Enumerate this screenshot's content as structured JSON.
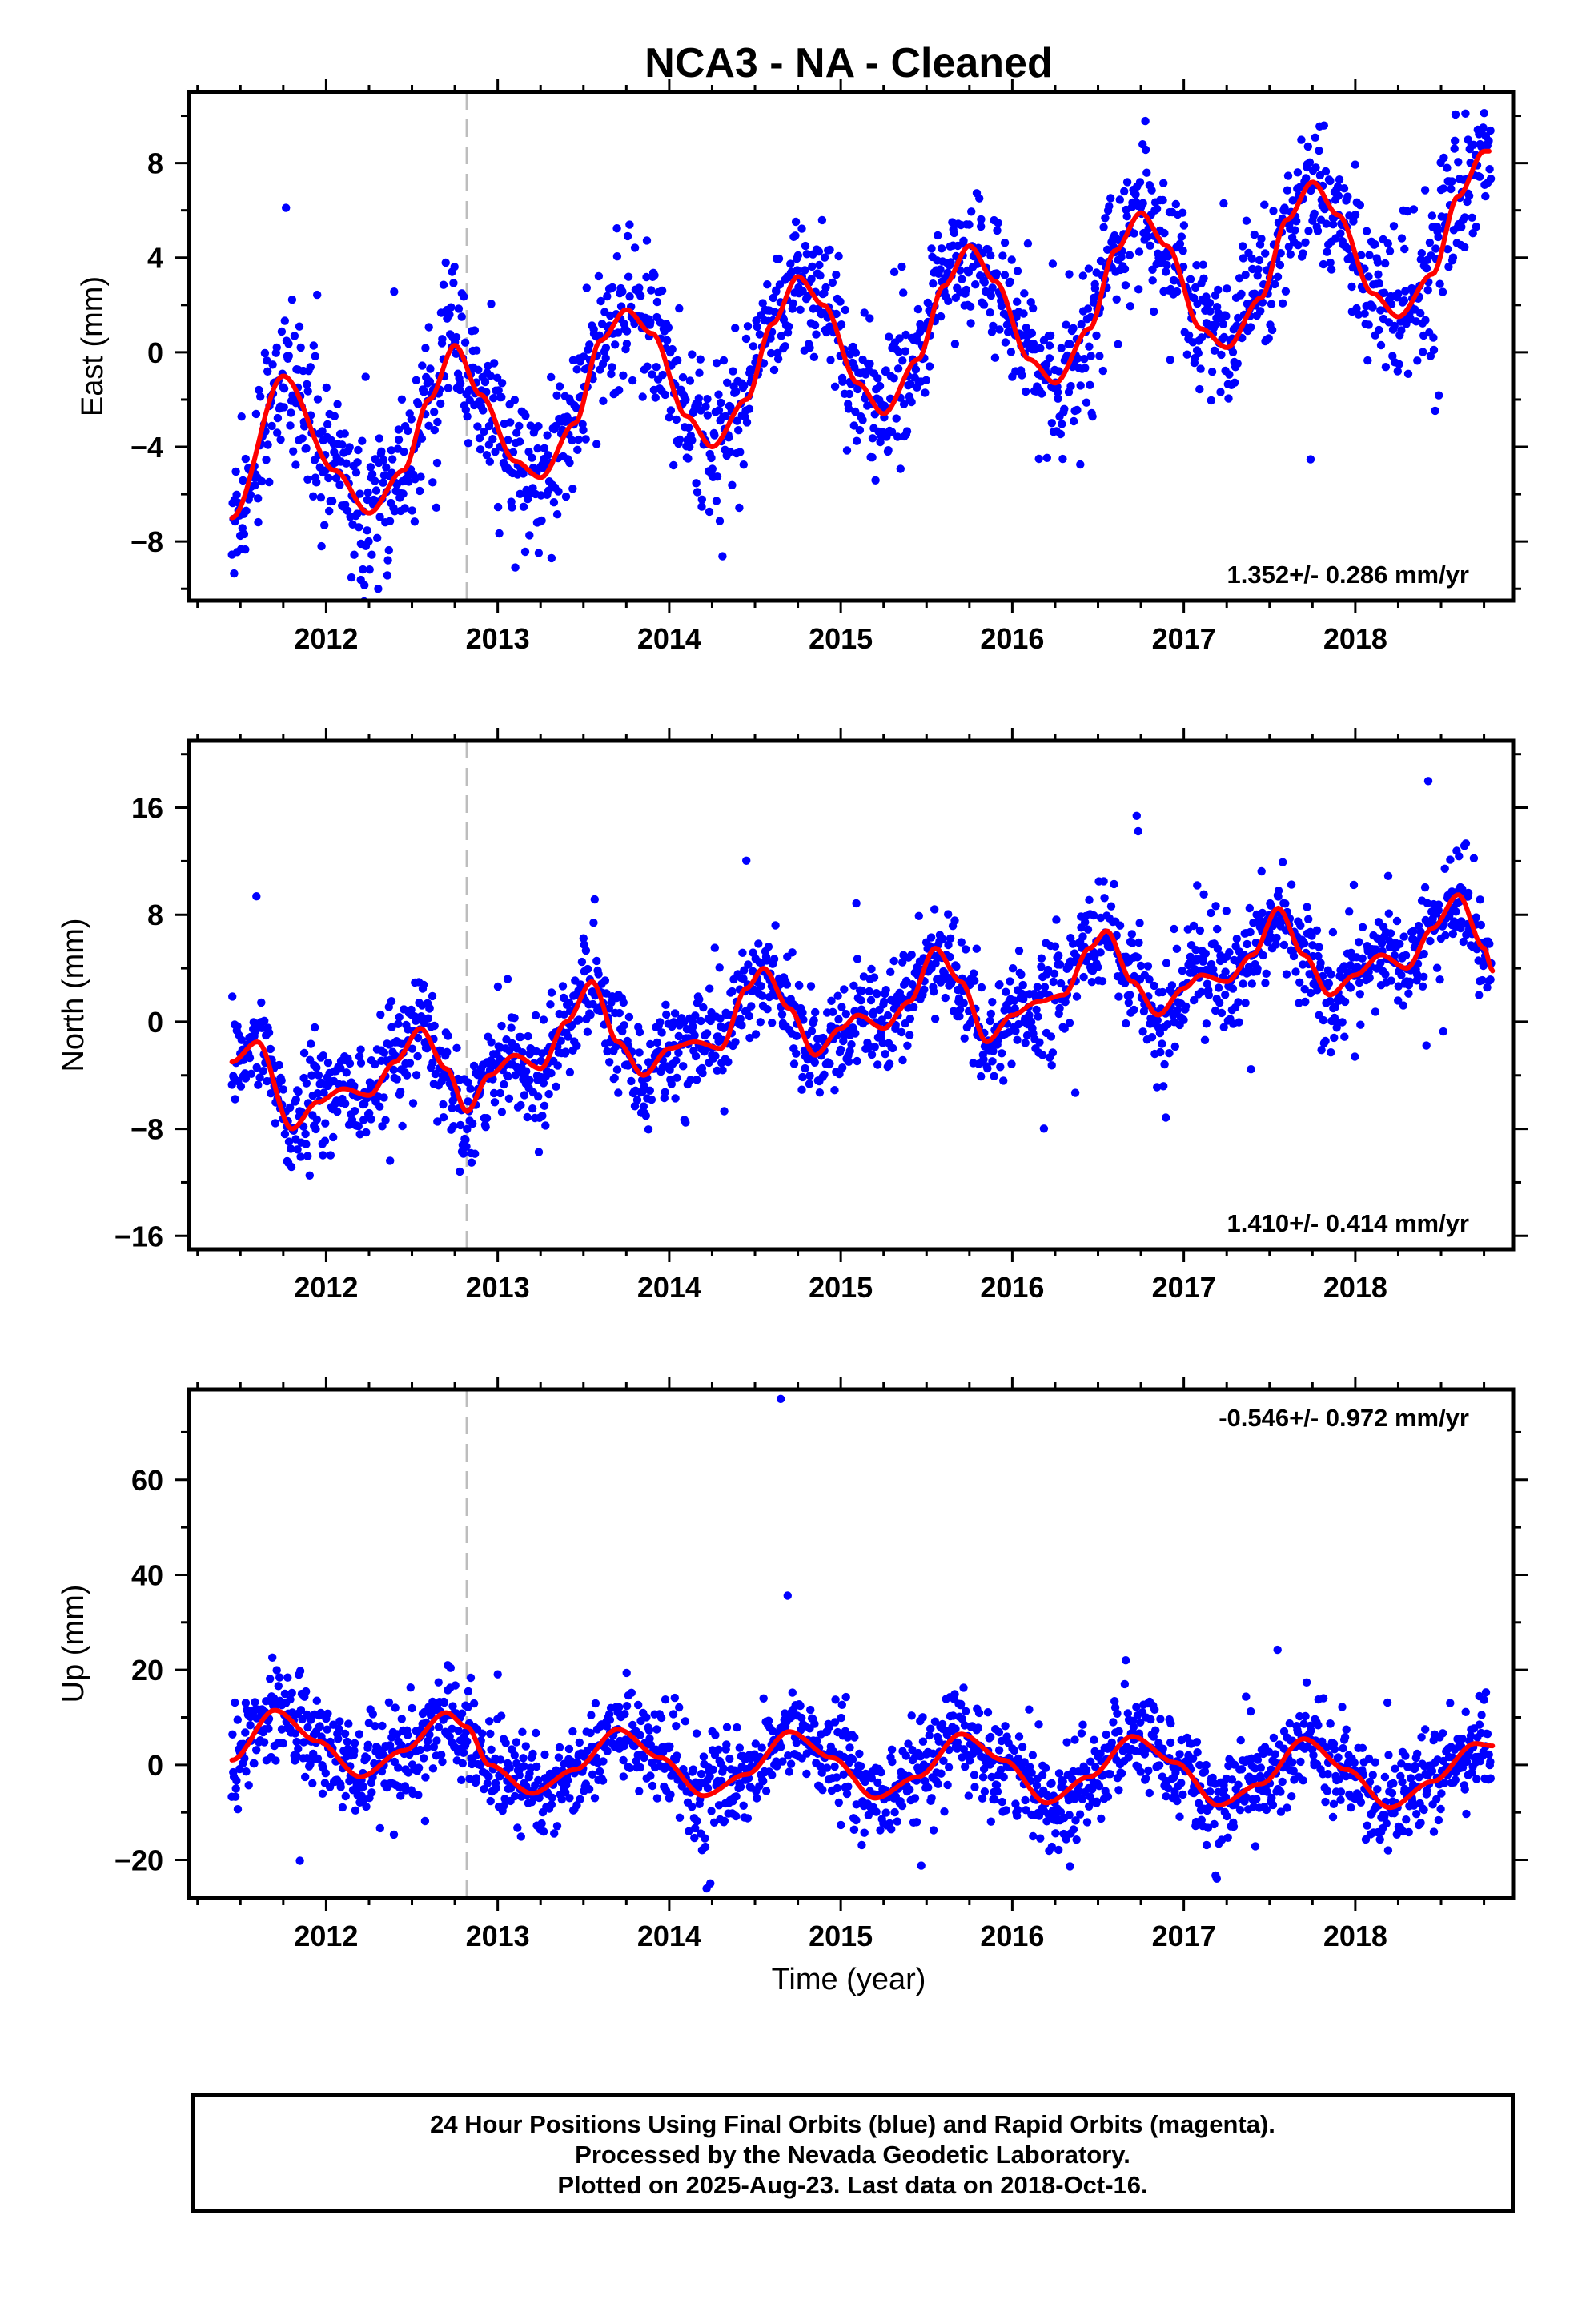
{
  "title": "NCA3  - NA - Cleaned",
  "xlabel": "Time (year)",
  "caption": [
    "24 Hour Positions Using Final Orbits (blue) and Rapid Orbits (magenta).",
    "Processed by the Nevada Geodetic Laboratory.",
    "Plotted on 2025-Aug-23. Last data on 2018-Oct-16."
  ],
  "colors": {
    "points": "#0000ff",
    "fit": "#ff0000",
    "marker": "#bdbdbd",
    "axis": "#000000"
  },
  "chart_data": [
    {
      "type": "scatter",
      "ylabel": "East (mm)",
      "xlim": [
        2011.2,
        2018.92
      ],
      "ylim": [
        -10.5,
        11.0
      ],
      "yticks": [
        -8,
        -4,
        0,
        4,
        8
      ],
      "xticks": [
        2012,
        2013,
        2014,
        2015,
        2016,
        2017,
        2018
      ],
      "event_line_x": 2012.82,
      "rate_label": "1.352+/- 0.286 mm/yr",
      "rate_position": "bottom-right",
      "fit": {
        "series": "red",
        "x": [
          2011.45,
          2011.75,
          2012.05,
          2012.25,
          2012.45,
          2012.6,
          2012.75,
          2012.9,
          2013.1,
          2013.25,
          2013.45,
          2013.6,
          2013.75,
          2013.9,
          2014.1,
          2014.25,
          2014.45,
          2014.6,
          2014.75,
          2014.9,
          2015.1,
          2015.25,
          2015.45,
          2015.6,
          2015.75,
          2015.9,
          2016.1,
          2016.25,
          2016.45,
          2016.6,
          2016.75,
          2016.9,
          2017.1,
          2017.25,
          2017.45,
          2017.6,
          2017.75,
          2017.9,
          2018.1,
          2018.25,
          2018.45,
          2018.6,
          2018.75,
          2018.78
        ],
        "y": [
          -7.0,
          -1.0,
          -5.0,
          -6.8,
          -5.0,
          -2.0,
          0.3,
          -1.8,
          -4.6,
          -5.3,
          -3.0,
          0.5,
          1.8,
          0.8,
          -2.7,
          -4.0,
          -2.0,
          1.2,
          3.2,
          2.0,
          -1.3,
          -2.6,
          -0.3,
          2.8,
          4.5,
          3.0,
          -0.3,
          -1.3,
          1.0,
          4.3,
          5.9,
          4.5,
          1.0,
          0.2,
          2.3,
          5.6,
          7.2,
          5.8,
          2.5,
          1.5,
          3.3,
          6.6,
          8.5,
          8.5
        ]
      },
      "points": {
        "count": 1800,
        "scatter_sd": 1.5,
        "range_x": [
          2011.45,
          2018.79
        ]
      }
    },
    {
      "type": "scatter",
      "ylabel": "North (mm)",
      "xlim": [
        2011.2,
        2018.92
      ],
      "ylim": [
        -17.0,
        21.0
      ],
      "yticks": [
        -16,
        -8,
        0,
        8,
        16
      ],
      "xticks": [
        2012,
        2013,
        2014,
        2015,
        2016,
        2017,
        2018
      ],
      "event_line_x": 2012.82,
      "rate_label": "1.410+/- 0.414 mm/yr",
      "rate_position": "bottom-right",
      "fit": {
        "series": "red",
        "x": [
          2011.45,
          2011.6,
          2011.8,
          2011.95,
          2012.1,
          2012.25,
          2012.4,
          2012.55,
          2012.7,
          2012.82,
          2012.95,
          2013.1,
          2013.25,
          2013.4,
          2013.55,
          2013.7,
          2013.85,
          2014.0,
          2014.15,
          2014.3,
          2014.45,
          2014.55,
          2014.7,
          2014.85,
          2015.0,
          2015.1,
          2015.25,
          2015.4,
          2015.55,
          2015.7,
          2015.85,
          2016.0,
          2016.15,
          2016.3,
          2016.45,
          2016.55,
          2016.7,
          2016.85,
          2017.0,
          2017.1,
          2017.25,
          2017.4,
          2017.55,
          2017.7,
          2017.85,
          2018.0,
          2018.15,
          2018.3,
          2018.45,
          2018.6,
          2018.75,
          2018.8
        ],
        "y": [
          -3.0,
          -1.5,
          -8.0,
          -6.0,
          -5.0,
          -5.5,
          -3.0,
          -0.5,
          -3.5,
          -6.7,
          -4.0,
          -2.5,
          -3.5,
          0.0,
          3.0,
          -1.5,
          -4.0,
          -2.0,
          -1.5,
          -2.0,
          2.5,
          4.0,
          1.0,
          -2.5,
          -0.5,
          0.5,
          -0.5,
          1.5,
          5.5,
          3.0,
          -1.5,
          0.5,
          1.5,
          2.0,
          5.5,
          6.8,
          3.0,
          0.5,
          2.5,
          3.5,
          3.0,
          5.0,
          8.5,
          5.0,
          2.0,
          3.5,
          5.0,
          4.0,
          7.0,
          9.5,
          5.5,
          3.8
        ]
      },
      "points": {
        "count": 1800,
        "scatter_sd": 1.9,
        "range_x": [
          2011.45,
          2018.79
        ]
      }
    },
    {
      "type": "scatter",
      "ylabel": "Up (mm)",
      "xlim": [
        2011.2,
        2018.92
      ],
      "ylim": [
        -28.0,
        79.0
      ],
      "yticks": [
        -20,
        0,
        20,
        40,
        60
      ],
      "xticks": [
        2012,
        2013,
        2014,
        2015,
        2016,
        2017,
        2018
      ],
      "event_line_x": 2012.82,
      "rate_label": "-0.546+/- 0.972 mm/yr",
      "rate_position": "top-right",
      "fit": {
        "series": "red",
        "x": [
          2011.45,
          2011.7,
          2011.95,
          2012.2,
          2012.45,
          2012.7,
          2012.82,
          2012.95,
          2013.2,
          2013.45,
          2013.7,
          2013.95,
          2014.2,
          2014.45,
          2014.7,
          2014.95,
          2015.2,
          2015.45,
          2015.7,
          2015.95,
          2016.2,
          2016.45,
          2016.7,
          2016.95,
          2017.2,
          2017.45,
          2017.7,
          2017.95,
          2018.2,
          2018.45,
          2018.7,
          2018.8
        ],
        "y": [
          1.0,
          11.5,
          5.0,
          -2.5,
          3.0,
          11.0,
          8.0,
          0.0,
          -6.0,
          -1.0,
          7.5,
          1.5,
          -6.5,
          -2.0,
          7.0,
          1.5,
          -7.0,
          -2.5,
          6.5,
          1.0,
          -8.0,
          -2.5,
          6.0,
          0.5,
          -8.5,
          -4.0,
          5.5,
          -1.0,
          -9.0,
          -3.5,
          4.5,
          4.0
        ]
      },
      "points": {
        "count": 1800,
        "scatter_sd": 5.0,
        "range_x": [
          2011.45,
          2018.79
        ],
        "outliers": [
          {
            "x": 2014.65,
            "y": 77.0
          }
        ]
      }
    }
  ]
}
